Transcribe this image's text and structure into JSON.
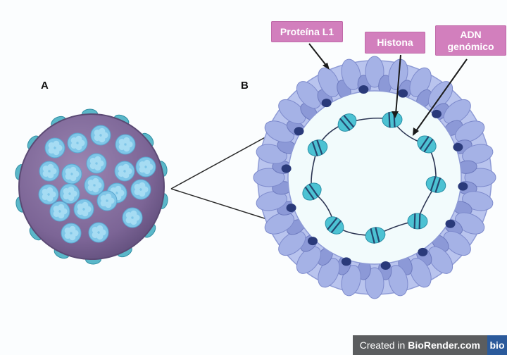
{
  "panels": {
    "a": "A",
    "b": "B"
  },
  "labels": {
    "protein": "Proteína L1",
    "histone": "Histona",
    "dna_line1": "ADN",
    "dna_line2": "genómico"
  },
  "watermark": {
    "prefix": "Created in",
    "brand": "BioRender.com",
    "logo": "bio"
  },
  "colors": {
    "background": "#fbfdfe",
    "callout": "#d27fbd",
    "capsid_purple": "#836c9e",
    "capsomere_blue": "#7fc6e8",
    "l1_protein": "#a5b2e6",
    "histone": "#4cc2d3",
    "dna": "#2c3553"
  }
}
